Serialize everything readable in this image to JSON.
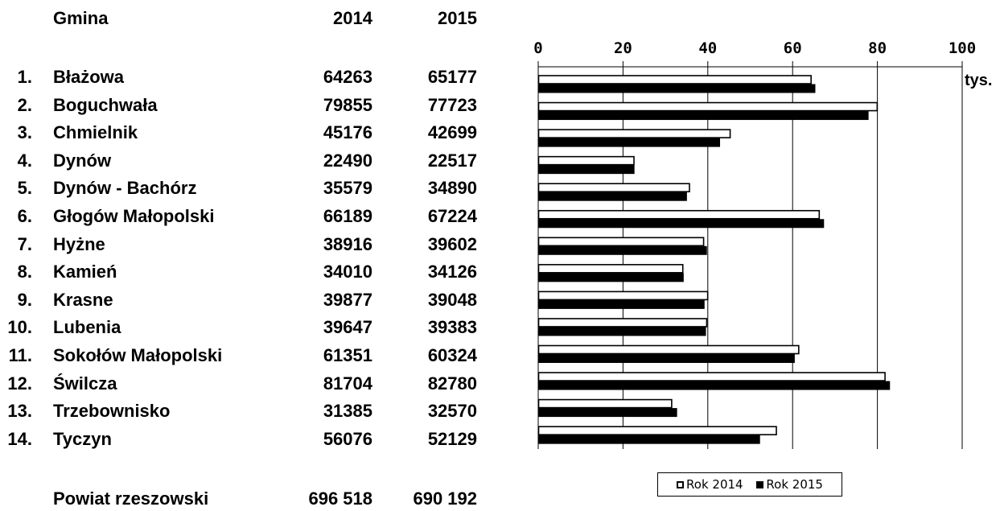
{
  "table": {
    "headers": {
      "name": "Gmina",
      "year1": "2014",
      "year2": "2015"
    },
    "rows": [
      {
        "no": "1.",
        "name": "Błażowa",
        "v2014": "64263",
        "v2015": "65177"
      },
      {
        "no": "2.",
        "name": "Boguchwała",
        "v2014": "79855",
        "v2015": "77723"
      },
      {
        "no": "3.",
        "name": "Chmielnik",
        "v2014": "45176",
        "v2015": "42699"
      },
      {
        "no": "4.",
        "name": "Dynów",
        "v2014": "22490",
        "v2015": "22517"
      },
      {
        "no": "5.",
        "name": "Dynów - Bachórz",
        "v2014": "35579",
        "v2015": "34890"
      },
      {
        "no": "6.",
        "name": "Głogów Małopolski",
        "v2014": "66189",
        "v2015": "67224"
      },
      {
        "no": "7.",
        "name": "Hyżne",
        "v2014": "38916",
        "v2015": "39602"
      },
      {
        "no": "8.",
        "name": "Kamień",
        "v2014": "34010",
        "v2015": "34126"
      },
      {
        "no": "9.",
        "name": "Krasne",
        "v2014": "39877",
        "v2015": "39048"
      },
      {
        "no": "10.",
        "name": "Lubenia",
        "v2014": "39647",
        "v2015": "39383"
      },
      {
        "no": "11.",
        "name": "Sokołów Małopolski",
        "v2014": "61351",
        "v2015": "60324"
      },
      {
        "no": "12.",
        "name": "Świlcza",
        "v2014": "81704",
        "v2015": "82780"
      },
      {
        "no": "13.",
        "name": "Trzebownisko",
        "v2014": "31385",
        "v2015": "32570"
      },
      {
        "no": "14.",
        "name": "Tyczyn",
        "v2014": "56076",
        "v2015": "52129"
      }
    ],
    "total": {
      "name": "Powiat rzeszowski",
      "v2014": "696 518",
      "v2015": "690 192"
    }
  },
  "chart_data": {
    "type": "bar",
    "orientation": "horizontal",
    "categories": [
      "Błażowa",
      "Boguchwała",
      "Chmielnik",
      "Dynów",
      "Dynów - Bachórz",
      "Głogów Małopolski",
      "Hyżne",
      "Kamień",
      "Krasne",
      "Lubenia",
      "Sokołów Małopolski",
      "Świlcza",
      "Trzebownisko",
      "Tyczyn"
    ],
    "series": [
      {
        "name": "Rok 2014",
        "color": "#ffffff",
        "values": [
          64.263,
          79.855,
          45.176,
          22.49,
          35.579,
          66.189,
          38.916,
          34.01,
          39.877,
          39.647,
          61.351,
          81.704,
          31.385,
          56.076
        ]
      },
      {
        "name": "Rok 2015",
        "color": "#000000",
        "values": [
          65.177,
          77.723,
          42.699,
          22.517,
          34.89,
          67.224,
          39.602,
          34.126,
          39.048,
          39.383,
          60.324,
          82.78,
          32.57,
          52.129
        ]
      }
    ],
    "xlim": [
      0,
      100
    ],
    "xticks": [
      "0",
      "20",
      "40",
      "60",
      "80",
      "100"
    ],
    "unit_label": "tys.",
    "grid": true,
    "legend_position": "bottom"
  }
}
